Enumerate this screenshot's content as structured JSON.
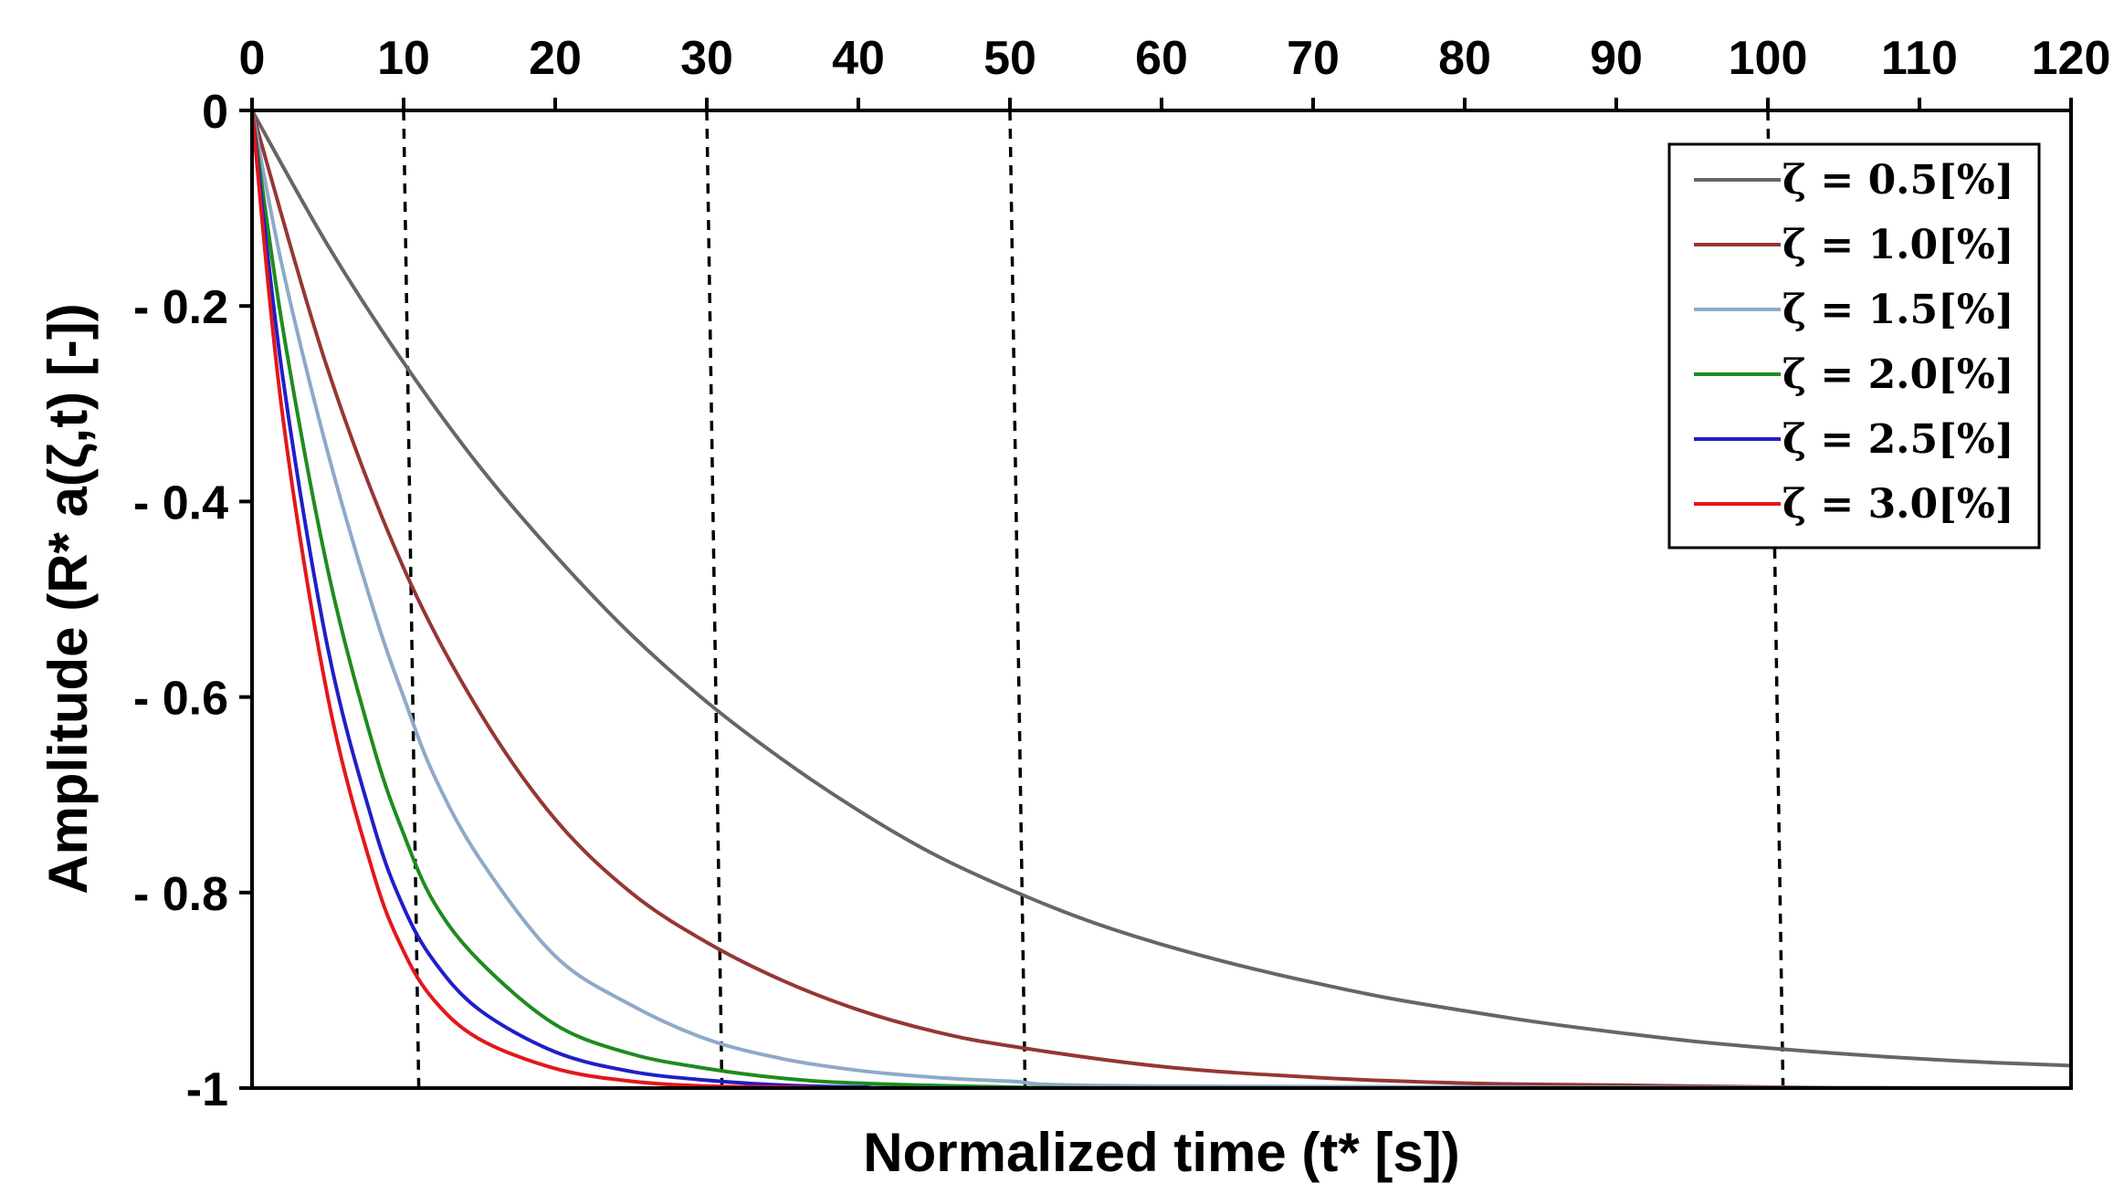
{
  "chart_data": {
    "type": "line",
    "title": "",
    "xlabel": "Normalized time (t* [s])",
    "ylabel": "Amplitude (R* a(ζ,t) [-])",
    "xlim": [
      0,
      120
    ],
    "ylim": [
      -1,
      0
    ],
    "xticks": [
      0,
      10,
      20,
      30,
      40,
      50,
      60,
      70,
      80,
      90,
      100,
      110,
      120
    ],
    "xtick_labels": [
      "0",
      "10",
      "20",
      "30",
      "40",
      "50",
      "60",
      "70",
      "80",
      "90",
      "100",
      "110",
      "120"
    ],
    "yticks": [
      0,
      -0.2,
      -0.4,
      -0.6,
      -0.8,
      -1
    ],
    "ytick_labels": [
      "0",
      "- 0.2",
      "- 0.4",
      "- 0.6",
      "- 0.8",
      "-1"
    ],
    "x_axis_position": "top",
    "grid": false,
    "legend_position": "top-right",
    "reference_lines": {
      "style": "dashed",
      "color": "#000000",
      "lines": [
        {
          "x_top": 10,
          "x_bottom": 11
        },
        {
          "x_top": 30,
          "x_bottom": 31
        },
        {
          "x_top": 50,
          "x_bottom": 51
        },
        {
          "x_top": 100,
          "x_bottom": 101
        }
      ]
    },
    "series": [
      {
        "name": "ζ = 0.5[%]",
        "zeta_label": "0.5",
        "color": "#666666",
        "x": [
          0,
          5,
          10,
          15,
          20,
          25,
          30,
          35,
          40,
          45,
          50,
          55,
          60,
          65,
          70,
          75,
          80,
          85,
          90,
          95,
          100,
          105,
          110,
          115,
          120
        ],
        "values": [
          0,
          -0.138,
          -0.258,
          -0.364,
          -0.455,
          -0.536,
          -0.605,
          -0.664,
          -0.716,
          -0.761,
          -0.797,
          -0.828,
          -0.853,
          -0.874,
          -0.892,
          -0.908,
          -0.921,
          -0.933,
          -0.943,
          -0.952,
          -0.959,
          -0.965,
          -0.97,
          -0.974,
          -0.977
        ]
      },
      {
        "name": "ζ = 1.0[%]",
        "zeta_label": "1.0",
        "color": "#953735",
        "x": [
          0,
          5,
          10,
          15,
          20,
          25,
          30,
          35,
          40,
          45,
          50,
          60,
          70,
          80,
          90,
          100,
          110,
          120
        ],
        "values": [
          0,
          -0.265,
          -0.468,
          -0.615,
          -0.725,
          -0.8,
          -0.851,
          -0.89,
          -0.92,
          -0.942,
          -0.957,
          -0.978,
          -0.989,
          -0.995,
          -0.997,
          -0.999,
          -1.0,
          -1.0
        ]
      },
      {
        "name": "ζ = 1.5[%]",
        "zeta_label": "1.5",
        "color": "#8EA9C8",
        "x": [
          0,
          2,
          5,
          8,
          10,
          12,
          15,
          20,
          25,
          30,
          35,
          40,
          45,
          50,
          60,
          120
        ],
        "values": [
          0,
          -0.16,
          -0.35,
          -0.51,
          -0.6,
          -0.68,
          -0.765,
          -0.865,
          -0.915,
          -0.95,
          -0.97,
          -0.982,
          -0.989,
          -0.993,
          -0.998,
          -1.0
        ]
      },
      {
        "name": "ζ = 2.0[%]",
        "zeta_label": "2.0",
        "color": "#1E8C1E",
        "x": [
          0,
          2,
          5,
          8,
          10,
          12,
          15,
          20,
          25,
          30,
          35,
          40,
          50,
          60,
          120
        ],
        "values": [
          0,
          -0.22,
          -0.47,
          -0.65,
          -0.74,
          -0.81,
          -0.87,
          -0.935,
          -0.965,
          -0.98,
          -0.99,
          -0.995,
          -0.999,
          -1.0,
          -1.0
        ]
      },
      {
        "name": "ζ = 2.5[%]",
        "zeta_label": "2.5",
        "color": "#1F1FC8",
        "x": [
          0,
          2,
          5,
          8,
          10,
          12,
          15,
          20,
          25,
          30,
          35,
          40,
          50,
          120
        ],
        "values": [
          0,
          -0.27,
          -0.55,
          -0.73,
          -0.815,
          -0.87,
          -0.92,
          -0.963,
          -0.983,
          -0.992,
          -0.997,
          -0.999,
          -1.0,
          -1.0
        ]
      },
      {
        "name": "ζ = 3.0[%]",
        "zeta_label": "3.0",
        "color": "#E3171B",
        "x": [
          0,
          2,
          5,
          8,
          10,
          12,
          15,
          20,
          25,
          30,
          35,
          40,
          50,
          120
        ],
        "values": [
          0,
          -0.31,
          -0.6,
          -0.78,
          -0.86,
          -0.91,
          -0.95,
          -0.98,
          -0.993,
          -0.998,
          -0.999,
          -1.0,
          -1.0,
          -1.0
        ]
      }
    ]
  }
}
